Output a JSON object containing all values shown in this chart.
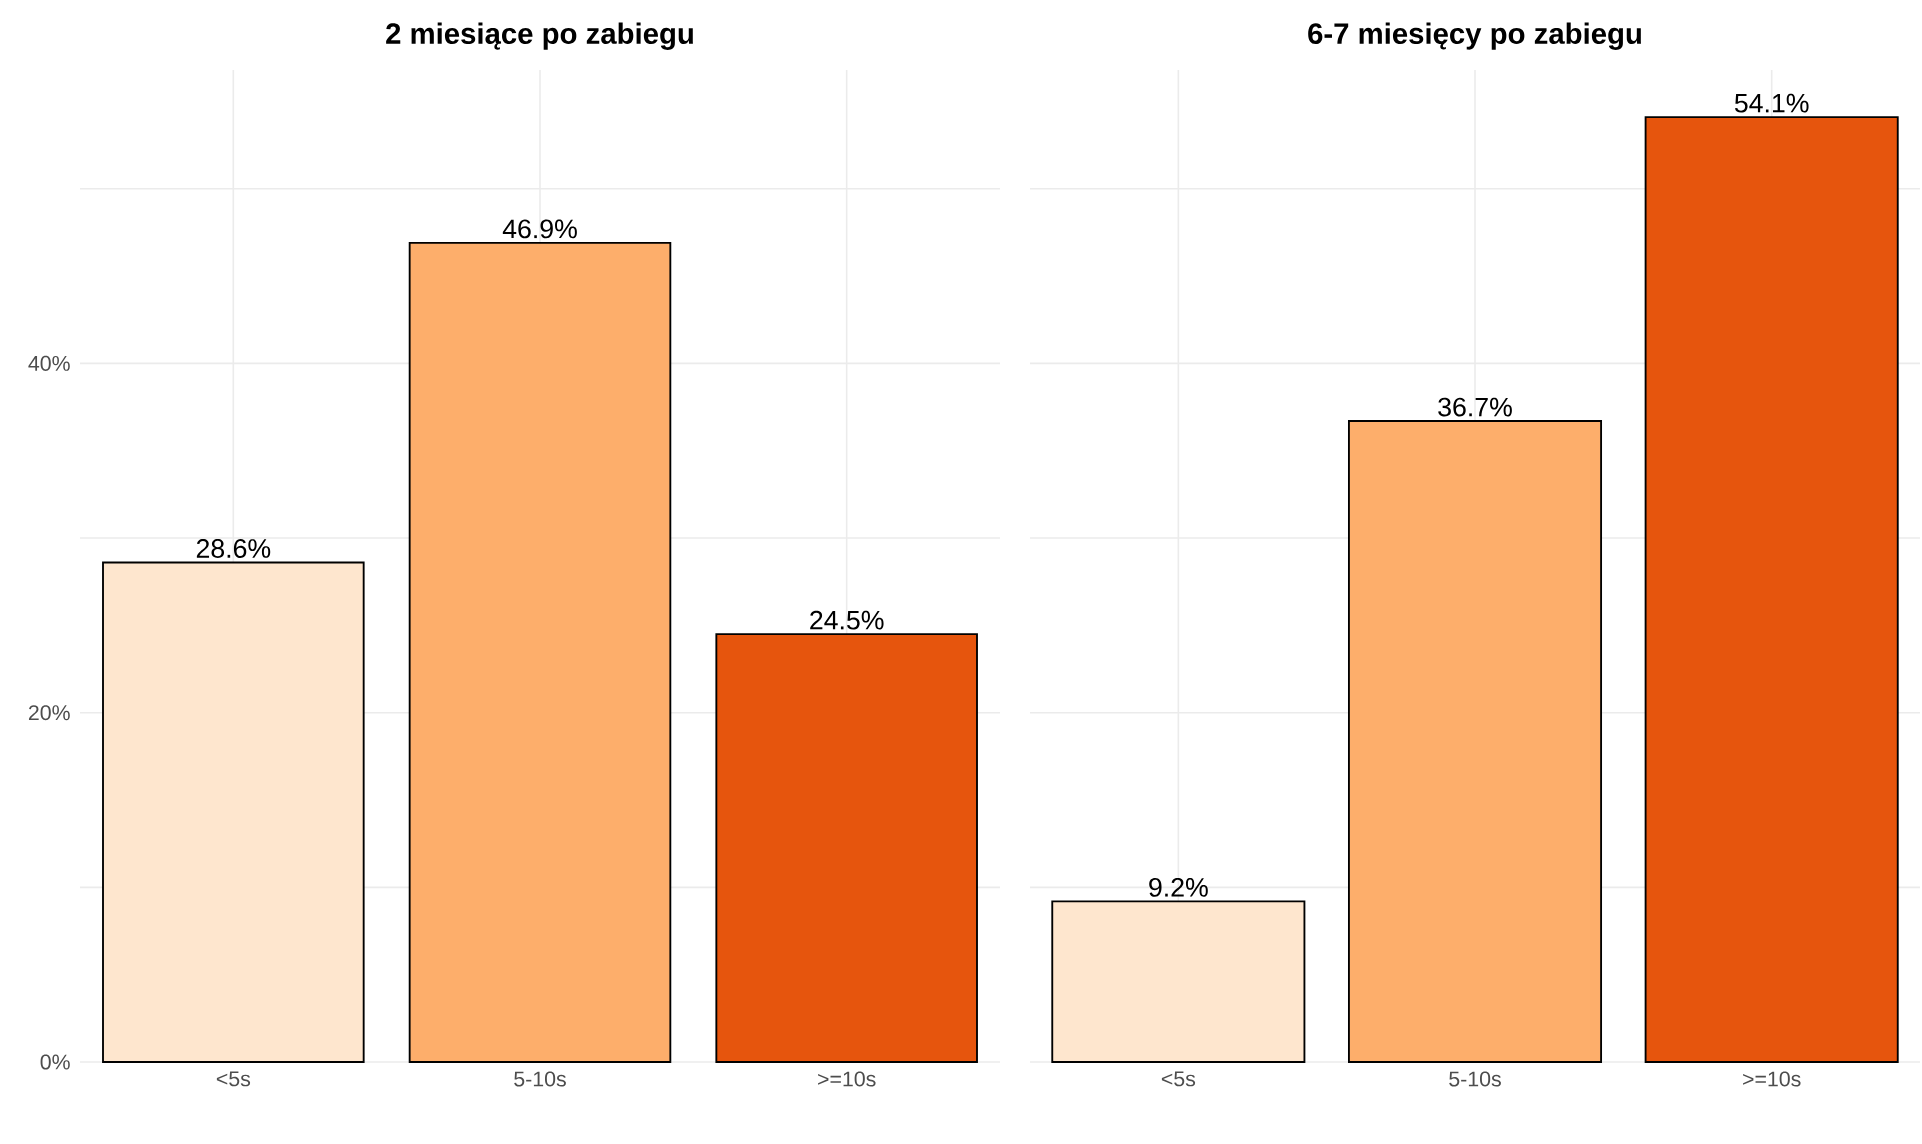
{
  "chart_data": [
    {
      "type": "bar",
      "title": "2 miesiące po zabiegu",
      "categories": [
        "<5s",
        "5-10s",
        ">=10s"
      ],
      "values": [
        28.6,
        46.9,
        24.5
      ],
      "colors": [
        "#fee6ce",
        "#fdae6b",
        "#e6550d"
      ],
      "value_labels": [
        "28.6%",
        "46.9%",
        "24.5%"
      ],
      "ylim": [
        0,
        56.8
      ],
      "yticks": [
        {
          "value": 0,
          "label": "0%"
        },
        {
          "value": 10,
          "label": null
        },
        {
          "value": 20,
          "label": "20%"
        },
        {
          "value": 30,
          "label": null
        },
        {
          "value": 40,
          "label": "40%"
        },
        {
          "value": 50,
          "label": null
        }
      ],
      "grid": true
    },
    {
      "type": "bar",
      "title": "6-7 miesięcy po zabiegu",
      "categories": [
        "<5s",
        "5-10s",
        ">=10s"
      ],
      "values": [
        9.2,
        36.7,
        54.1
      ],
      "colors": [
        "#fee6ce",
        "#fdae6b",
        "#e6550d"
      ],
      "value_labels": [
        "9.2%",
        "36.7%",
        "54.1%"
      ],
      "ylim": [
        0,
        56.8
      ],
      "yticks": [
        {
          "value": 0,
          "label": null
        },
        {
          "value": 10,
          "label": null
        },
        {
          "value": 20,
          "label": null
        },
        {
          "value": 30,
          "label": null
        },
        {
          "value": 40,
          "label": null
        },
        {
          "value": 50,
          "label": null
        }
      ],
      "grid": true,
      "tick_labels": "x"
    }
  ]
}
